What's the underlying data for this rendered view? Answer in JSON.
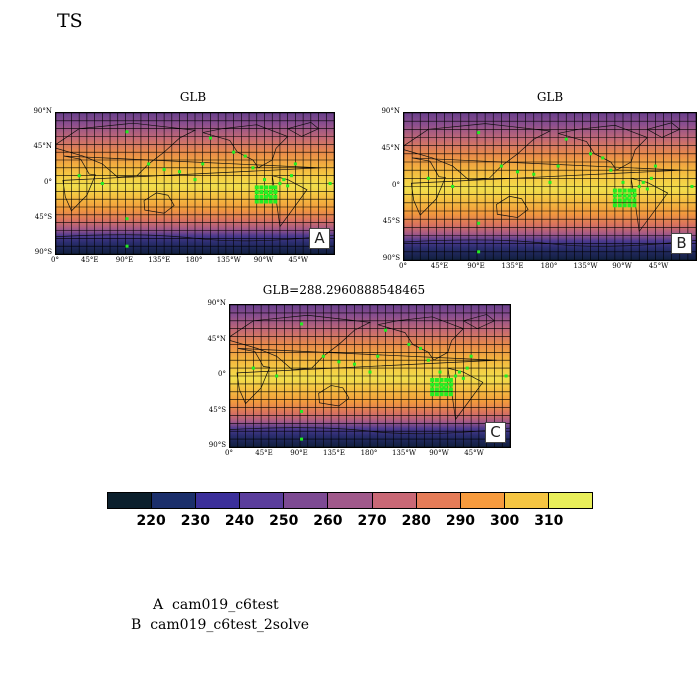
{
  "title": "TS",
  "panels": [
    {
      "tag": "A",
      "title": "GLB"
    },
    {
      "tag": "B",
      "title": "GLB"
    },
    {
      "tag": "C",
      "title": "GLB=288.2960888548465"
    }
  ],
  "lat_labels": [
    "90°N",
    "45°N",
    "0°",
    "45°S",
    "90°S"
  ],
  "lon_labels": [
    "0°",
    "45°E",
    "90°E",
    "135°E",
    "180°",
    "135°W",
    "90°W",
    "45°W"
  ],
  "colorbar": {
    "labels": [
      "220",
      "230",
      "240",
      "250",
      "260",
      "270",
      "280",
      "290",
      "300",
      "310"
    ],
    "colors": [
      "#0b1f2c",
      "#1b2f6b",
      "#3b2f9a",
      "#5a3d9c",
      "#7d4a93",
      "#a0598b",
      "#c96876",
      "#e57c58",
      "#f79b3e",
      "#f5c542",
      "#e9ef5a"
    ]
  },
  "legend": [
    {
      "tag": "A",
      "name": "cam019_c6test"
    },
    {
      "tag": "B",
      "name": "cam019_c6test_2solve"
    }
  ]
}
